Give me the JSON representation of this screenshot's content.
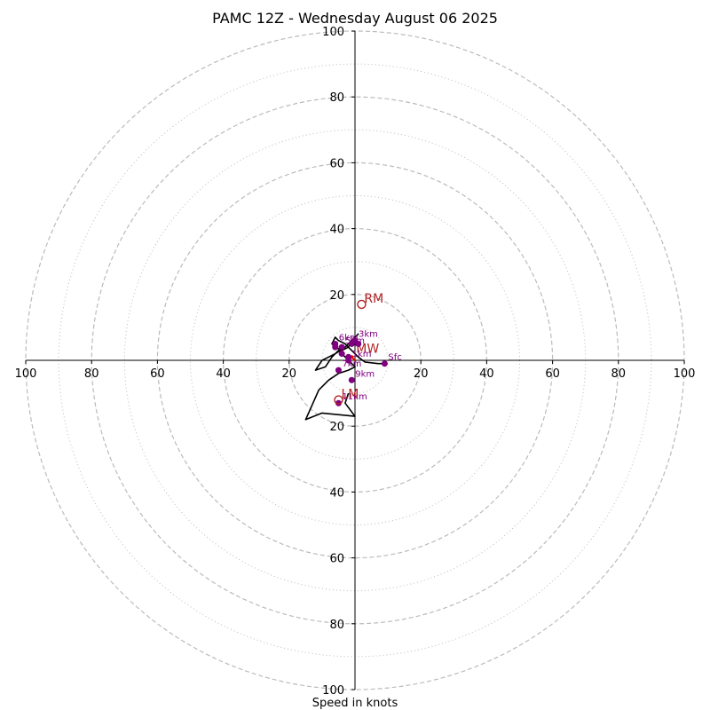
{
  "chart_data": {
    "type": "scatter",
    "subtype": "hodograph",
    "title": "PAMC 12Z - Wednesday August 06 2025",
    "xlabel": "Speed in knots",
    "ylabel": "",
    "xlim": [
      -100,
      100
    ],
    "ylim": [
      -100,
      100
    ],
    "rings_major": [
      20,
      40,
      60,
      80,
      100
    ],
    "rings_minor": [
      10,
      30,
      50,
      70,
      90
    ],
    "tick_values": [
      20,
      40,
      60,
      80,
      100
    ],
    "grid": true,
    "colors": {
      "trace": "#000000",
      "height_marker": "#800080",
      "motion_marker": "#b22222",
      "mean_wind": "#ff0000",
      "ring": "#bbbbbb"
    },
    "trace": {
      "u": [
        9,
        7,
        3,
        1,
        0,
        -1,
        -3,
        -5,
        -6,
        -7,
        -6,
        -4,
        -2,
        -1,
        1,
        -1,
        -3,
        -6,
        -8,
        -10,
        -12,
        -9,
        -7,
        -5,
        -4,
        -2,
        -1,
        0,
        -2,
        -5,
        -8,
        -11,
        -15,
        -10,
        0,
        -3,
        -2
      ],
      "v": [
        -1,
        -1,
        -0.5,
        1,
        2,
        3,
        5,
        6,
        7,
        5,
        4,
        3,
        4,
        6,
        8,
        6,
        4,
        2,
        1,
        0,
        -3,
        -2,
        1,
        3,
        2,
        0,
        -1,
        -2,
        -3,
        -4,
        -6,
        -9,
        -18,
        -16,
        -17,
        -13,
        -10
      ]
    },
    "height_points": [
      {
        "label": "Sfc",
        "u": 9,
        "v": -1
      },
      {
        "label": "1km",
        "u": -2,
        "v": 0
      },
      {
        "label": "3km",
        "u": 0,
        "v": 6
      },
      {
        "label": "5km",
        "u": -4,
        "v": 4
      },
      {
        "label": "6km",
        "u": -6,
        "v": 5
      },
      {
        "label": "7km",
        "u": -5,
        "v": -3
      },
      {
        "label": "9km",
        "u": -1,
        "v": -6
      },
      {
        "label": "11km",
        "u": -5,
        "v": -13
      }
    ],
    "extra_points": [
      {
        "u": -6,
        "v": 4
      },
      {
        "u": -4,
        "v": 2
      },
      {
        "u": -1,
        "v": 5
      },
      {
        "u": 1,
        "v": 5
      },
      {
        "u": -2,
        "v": 1
      }
    ],
    "storm_motion": [
      {
        "label": "RM",
        "u": 2,
        "v": 17
      },
      {
        "label": "LM",
        "u": -5,
        "v": -12
      }
    ],
    "mean_wind": {
      "label": "MW",
      "u": -1,
      "v": 1
    }
  }
}
